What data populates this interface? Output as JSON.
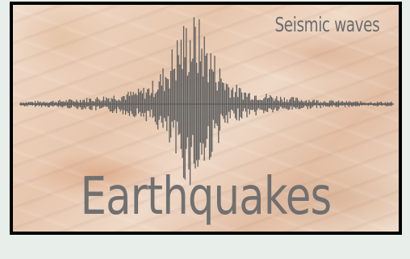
{
  "image": {
    "subtitle": "Seismic waves",
    "title": "Earthquakes",
    "icon": "seismograph-waveform",
    "colors": {
      "frame": "#000000",
      "text": "#6c6c6c",
      "wave": "#5f5f5f",
      "page_background": "#e8eee9"
    }
  }
}
